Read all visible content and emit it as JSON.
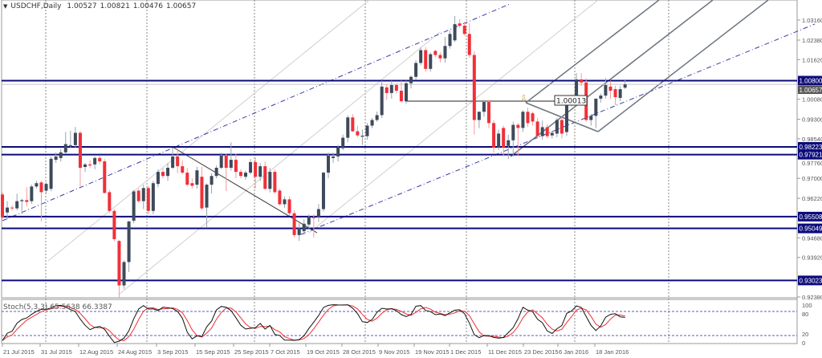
{
  "header": {
    "symbol": "USDCHF,Daily",
    "open": "1.00527",
    "high": "1.00821",
    "low": "1.00476",
    "close": "1.00657"
  },
  "stochastic": {
    "label": "Stoch(5,3,3)",
    "main_value": "65.5638",
    "signal_value": "66.3387",
    "scale_labels": [
      "100",
      "80",
      "20",
      "0"
    ]
  },
  "colors": {
    "bull": "#3d4a5a",
    "bear": "#f0303a",
    "level_line": "#0b0b7a",
    "stoch_main": "#111111",
    "stoch_signal": "#f03030",
    "trend_dashdot": "#3a3aa8"
  },
  "object_label": "1.00013",
  "chart_data": {
    "type": "candlestick",
    "title": "USDCHF,Daily",
    "ylim": [
      0.9225,
      1.0345
    ],
    "grid": true,
    "x_tick_labels": [
      "21 Jul 2015",
      "31 Jul 2015",
      "12 Aug 2015",
      "24 Aug 2015",
      "3 Sep 2015",
      "15 Sep 2015",
      "25 Sep 2015",
      "7 Oct 2015",
      "19 Oct 2015",
      "28 Oct 2015",
      "9 Nov 2015",
      "19 Nov 2015",
      "1 Dec 2015",
      "11 Dec 2015",
      "23 Dec 2015",
      "6 Jan 2016",
      "18 Jan 2016"
    ],
    "y_tick_labels": [
      "1.03160",
      "1.02380",
      "1.01620",
      "1.00080",
      "0.99300",
      "0.98540",
      "0.97760",
      "0.97000",
      "0.96220",
      "0.94680",
      "0.93920",
      "0.92380"
    ],
    "horizontal_levels": [
      "1.00800",
      "0.98223",
      "0.97921",
      "0.95508",
      "0.95049",
      "0.93023"
    ],
    "current_price": "1.00657",
    "ohlc_columns": [
      "open",
      "high",
      "low",
      "close"
    ],
    "candles": [
      [
        0.9637,
        0.9645,
        0.954,
        0.9548
      ],
      [
        0.9567,
        0.9611,
        0.954,
        0.9586
      ],
      [
        0.9586,
        0.9595,
        0.9575,
        0.9583
      ],
      [
        0.9583,
        0.964,
        0.9575,
        0.9611
      ],
      [
        0.9611,
        0.962,
        0.956,
        0.9615
      ],
      [
        0.9615,
        0.9665,
        0.959,
        0.9608
      ],
      [
        0.9611,
        0.9675,
        0.96,
        0.9668
      ],
      [
        0.9668,
        0.969,
        0.966,
        0.9681
      ],
      [
        0.9684,
        0.969,
        0.9532,
        0.9646
      ],
      [
        0.9652,
        0.9685,
        0.964,
        0.9678
      ],
      [
        0.9659,
        0.9785,
        0.965,
        0.9776
      ],
      [
        0.9772,
        0.98,
        0.976,
        0.9785
      ],
      [
        0.9779,
        0.9815,
        0.9765,
        0.9801
      ],
      [
        0.9801,
        0.988,
        0.9795,
        0.9833
      ],
      [
        0.9826,
        0.9885,
        0.982,
        0.9829
      ],
      [
        0.9829,
        0.99,
        0.982,
        0.9877
      ],
      [
        0.9877,
        0.9885,
        0.9668,
        0.9741
      ],
      [
        0.9744,
        0.976,
        0.9725,
        0.9754
      ],
      [
        0.9754,
        0.977,
        0.974,
        0.975
      ],
      [
        0.9754,
        0.9785,
        0.9735,
        0.9779
      ],
      [
        0.9779,
        0.979,
        0.9755,
        0.9766
      ],
      [
        0.9766,
        0.9775,
        0.964,
        0.9643
      ],
      [
        0.9646,
        0.9655,
        0.9565,
        0.9573
      ],
      [
        0.9573,
        0.958,
        0.9455,
        0.9463
      ],
      [
        0.9456,
        0.946,
        0.9235,
        0.9283
      ],
      [
        0.9283,
        0.938,
        0.927,
        0.9374
      ],
      [
        0.9374,
        0.9535,
        0.9335,
        0.9532
      ],
      [
        0.9535,
        0.9655,
        0.9525,
        0.9649
      ],
      [
        0.9652,
        0.966,
        0.9605,
        0.9611
      ],
      [
        0.9611,
        0.9675,
        0.958,
        0.9662
      ],
      [
        0.9662,
        0.967,
        0.956,
        0.9573
      ],
      [
        0.9573,
        0.969,
        0.956,
        0.9681
      ],
      [
        0.9678,
        0.9735,
        0.9665,
        0.9725
      ],
      [
        0.9725,
        0.974,
        0.97,
        0.9709
      ],
      [
        0.9709,
        0.976,
        0.969,
        0.9741
      ],
      [
        0.9741,
        0.9817,
        0.9735,
        0.9785
      ],
      [
        0.9785,
        0.9817,
        0.972,
        0.9747
      ],
      [
        0.9747,
        0.977,
        0.9715,
        0.9722
      ],
      [
        0.9722,
        0.974,
        0.9668,
        0.9675
      ],
      [
        0.9681,
        0.97,
        0.966,
        0.9671
      ],
      [
        0.9675,
        0.9745,
        0.966,
        0.9731
      ],
      [
        0.9706,
        0.9745,
        0.9575,
        0.9583
      ],
      [
        0.9586,
        0.968,
        0.951,
        0.9675
      ],
      [
        0.9675,
        0.972,
        0.964,
        0.9709
      ],
      [
        0.9709,
        0.975,
        0.97,
        0.9741
      ],
      [
        0.9741,
        0.98,
        0.9735,
        0.9788
      ],
      [
        0.9788,
        0.9795,
        0.965,
        0.9741
      ],
      [
        0.9741,
        0.984,
        0.973,
        0.9772
      ],
      [
        0.9772,
        0.9795,
        0.97,
        0.9725
      ],
      [
        0.9725,
        0.9735,
        0.97,
        0.9709
      ],
      [
        0.9706,
        0.973,
        0.9695,
        0.9722
      ],
      [
        0.9722,
        0.9775,
        0.9715,
        0.9763
      ],
      [
        0.9763,
        0.978,
        0.966,
        0.9706
      ],
      [
        0.9706,
        0.976,
        0.969,
        0.9747
      ],
      [
        0.9747,
        0.9765,
        0.9655,
        0.9659
      ],
      [
        0.9659,
        0.974,
        0.9645,
        0.9725
      ],
      [
        0.9725,
        0.9735,
        0.964,
        0.9646
      ],
      [
        0.9652,
        0.966,
        0.9595,
        0.9599
      ],
      [
        0.9599,
        0.963,
        0.9585,
        0.9618
      ],
      [
        0.9618,
        0.963,
        0.9555,
        0.9564
      ],
      [
        0.9564,
        0.9575,
        0.947,
        0.9479
      ],
      [
        0.9479,
        0.9525,
        0.9456,
        0.9504
      ],
      [
        0.9494,
        0.954,
        0.948,
        0.9523
      ],
      [
        0.952,
        0.956,
        0.95,
        0.9548
      ],
      [
        0.9548,
        0.956,
        0.947,
        0.9545
      ],
      [
        0.9548,
        0.96,
        0.953,
        0.958
      ],
      [
        0.958,
        0.9725,
        0.957,
        0.9722
      ],
      [
        0.9722,
        0.98,
        0.97,
        0.9788
      ],
      [
        0.9779,
        0.98,
        0.976,
        0.9785
      ],
      [
        0.9785,
        0.983,
        0.9765,
        0.982
      ],
      [
        0.9817,
        0.987,
        0.981,
        0.9858
      ],
      [
        0.9858,
        0.9945,
        0.984,
        0.9937
      ],
      [
        0.9937,
        0.995,
        0.988,
        0.9883
      ],
      [
        0.9883,
        0.9905,
        0.986,
        0.9867
      ],
      [
        0.9862,
        0.989,
        0.983,
        0.9866
      ],
      [
        0.9864,
        0.9915,
        0.985,
        0.9905
      ],
      [
        0.9905,
        0.9935,
        0.9895,
        0.9927
      ],
      [
        0.9927,
        0.996,
        0.992,
        0.9946
      ],
      [
        0.9946,
        1.008,
        0.9935,
        1.0057
      ],
      [
        1.0054,
        1.0065,
        1.0005,
        1.0032
      ],
      [
        1.0032,
        1.008,
        1.001,
        1.0063
      ],
      [
        1.0063,
        1.007,
        1.003,
        1.0041
      ],
      [
        1.0041,
        1.008,
        0.9995,
        1.0
      ],
      [
        1.0,
        1.008,
        0.999,
        1.007
      ],
      [
        1.007,
        1.01,
        1.005,
        1.0095
      ],
      [
        1.0095,
        1.016,
        1.0085,
        1.0149
      ],
      [
        1.0149,
        1.021,
        1.014,
        1.0199
      ],
      [
        1.0199,
        1.021,
        1.0115,
        1.0126
      ],
      [
        1.0126,
        1.019,
        1.0115,
        1.0183
      ],
      [
        1.0196,
        1.02,
        1.017,
        1.018
      ],
      [
        1.018,
        1.019,
        1.015,
        1.0167
      ],
      [
        1.0167,
        1.025,
        1.015,
        1.0215
      ],
      [
        1.0215,
        1.0275,
        1.0205,
        1.0262
      ],
      [
        1.0237,
        1.0332,
        1.023,
        1.03
      ],
      [
        1.0303,
        1.032,
        1.0285,
        1.0294
      ],
      [
        1.0294,
        1.031,
        1.0255,
        1.0262
      ],
      [
        1.0262,
        1.0305,
        1.017,
        1.018
      ],
      [
        1.018,
        1.0195,
        0.987,
        0.9927
      ],
      [
        0.9927,
        0.996,
        0.9895,
        0.9959
      ],
      [
        0.9959,
        1.0005,
        0.994,
        0.9997
      ],
      [
        0.9997,
        1.0005,
        0.9895,
        0.9915
      ],
      [
        0.9915,
        0.9925,
        0.98,
        0.982
      ],
      [
        0.982,
        0.989,
        0.981,
        0.9874
      ],
      [
        0.9896,
        0.9905,
        0.979,
        0.982
      ],
      [
        0.9826,
        0.987,
        0.9775,
        0.9848
      ],
      [
        0.9848,
        0.992,
        0.9785,
        0.9908
      ],
      [
        0.9908,
        0.9915,
        0.979,
        0.9896
      ],
      [
        0.9896,
        0.9965,
        0.988,
        0.9959
      ],
      [
        0.9959,
        0.9975,
        0.99,
        0.9915
      ],
      [
        0.9953,
        0.996,
        0.9905,
        0.9921
      ],
      [
        0.9921,
        0.9935,
        0.9855,
        0.9864
      ],
      [
        0.9864,
        0.9925,
        0.985,
        0.9899
      ],
      [
        0.9899,
        0.991,
        0.9855,
        0.9864
      ],
      [
        0.9867,
        0.9885,
        0.9855,
        0.9877
      ],
      [
        0.9874,
        0.9935,
        0.986,
        0.9927
      ],
      [
        0.9927,
        0.994,
        0.9855,
        0.9874
      ],
      [
        0.988,
        0.9995,
        0.9865,
        0.9991
      ],
      [
        0.9991,
        1.0025,
        0.998,
        1.0019
      ],
      [
        1.0019,
        1.011,
        1.0,
        1.0085
      ],
      [
        1.0085,
        1.011,
        1.006,
        1.0073
      ],
      [
        1.0073,
        1.009,
        0.992,
        0.9927
      ],
      [
        0.9927,
        0.995,
        0.9905,
        0.9943
      ],
      [
        0.9943,
        1.001,
        0.9895,
        1.001
      ],
      [
        1.001,
        1.003,
        0.9995,
        1.0022
      ],
      [
        1.0022,
        1.009,
        1.001,
        1.0063
      ],
      [
        1.0057,
        1.008,
        1.001,
        1.0041
      ],
      [
        1.0047,
        1.006,
        0.9985,
        1.0016
      ],
      [
        1.0013,
        1.006,
        1.0,
        1.0047
      ],
      [
        1.00527,
        1.00821,
        1.00476,
        1.00657
      ]
    ]
  }
}
